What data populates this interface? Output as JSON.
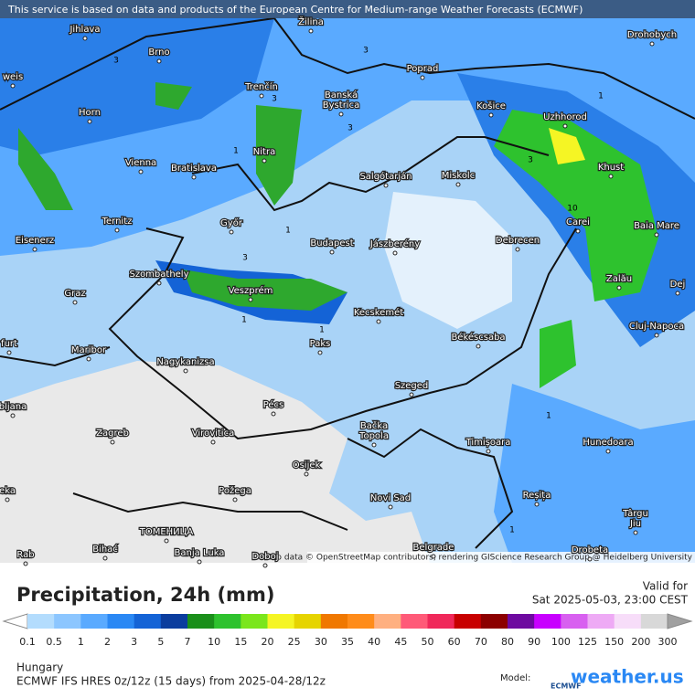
{
  "header": {
    "disclaimer": "This service is based on data and products of the European Centre for Medium-range Weather Forecasts (ECMWF)"
  },
  "map": {
    "cities": [
      [
        "Jihlava"
      ],
      [
        "Brno"
      ],
      [
        "Žilina"
      ],
      [
        "Poprad"
      ],
      [
        "Drohobych"
      ],
      [
        "weis"
      ],
      [
        "Trenčín"
      ],
      [
        "Banská",
        "Bystrica"
      ],
      [
        "Košice"
      ],
      [
        "Uzhhorod"
      ],
      [
        "Horn"
      ],
      [
        "Nitra"
      ],
      [
        "Vienna"
      ],
      [
        "Bratislava"
      ],
      [
        "Salgótarján"
      ],
      [
        "Miskolc"
      ],
      [
        "Khust"
      ],
      [
        "Ternitz"
      ],
      [
        "Győr"
      ],
      [
        "Budapest"
      ],
      [
        "Jászberény"
      ],
      [
        "Debrecen"
      ],
      [
        "Carei"
      ],
      [
        "Baia Mare"
      ],
      [
        "Eisenerz"
      ],
      [
        "Szombathely"
      ],
      [
        "Veszprém"
      ],
      [
        "Zalău"
      ],
      [
        "Dej"
      ],
      [
        "Graz"
      ],
      [
        "Kecskemét"
      ],
      [
        "Cluj-Napoca"
      ],
      [
        "Paks"
      ],
      [
        "Békéscsaba"
      ],
      [
        "furt"
      ],
      [
        "Maribor"
      ],
      [
        "Nagykanizsa"
      ],
      [
        "Szeged"
      ],
      [
        "Pécs"
      ],
      [
        "bljana"
      ],
      [
        "Zagreb"
      ],
      [
        "Virovitica"
      ],
      [
        "Bačka",
        "Topola"
      ],
      [
        "Timișoara"
      ],
      [
        "Hunedoara"
      ],
      [
        "Osijek"
      ],
      [
        "eka"
      ],
      [
        "Požega"
      ],
      [
        "Reșița"
      ],
      [
        "Novi Sad"
      ],
      [
        "Târgu",
        "Jiu"
      ],
      [
        "ТОМЕНИЦА"
      ],
      [
        "Bihać"
      ],
      [
        "Banja Luka"
      ],
      [
        "Doboj"
      ],
      [
        "Belgrade"
      ],
      [
        "Drobeta"
      ],
      [
        "Rab"
      ]
    ],
    "contour_labels": [
      "3",
      "3",
      "3",
      "1",
      "1",
      "3",
      "1",
      "3",
      "1",
      "1",
      "10",
      "3",
      "1",
      "1"
    ],
    "attribution": "Map data © OpenStreetMap contributors, rendering GIScience Research Group @ Heidelberg University"
  },
  "legend": {
    "title": "Precipitation, 24h (mm)",
    "valid_label": "Valid for",
    "valid_time": "Sat 2025-05-03, 23:00 CEST",
    "scale": [
      0.1,
      0.5,
      1,
      2,
      3,
      5,
      7,
      10,
      15,
      20,
      25,
      30,
      35,
      40,
      45,
      50,
      60,
      70,
      80,
      90,
      100,
      125,
      150,
      200,
      300
    ],
    "colors": [
      "#ffffff",
      "#b3dcfd",
      "#8cc6ff",
      "#5aaaff",
      "#2a88f4",
      "#1463d6",
      "#0b3d9e",
      "#1a8f1a",
      "#2ec22e",
      "#7be61c",
      "#f5f524",
      "#e6d400",
      "#f07800",
      "#ff8c1a",
      "#ffb080",
      "#ff5a78",
      "#f0285a",
      "#c80000",
      "#8c0000",
      "#6e0aa0",
      "#c800ff",
      "#d860f0",
      "#eeaaf5",
      "#f7ddf9",
      "#d8d8d8",
      "#a0a0a0"
    ]
  },
  "footer": {
    "region": "Hungary",
    "model_run": "ECMWF IFS HRES 0z/12z (15 days) from  2025-04-28/12z",
    "model_label": "Model:",
    "model_logo": "ECMWF",
    "brand": "weather.us"
  }
}
